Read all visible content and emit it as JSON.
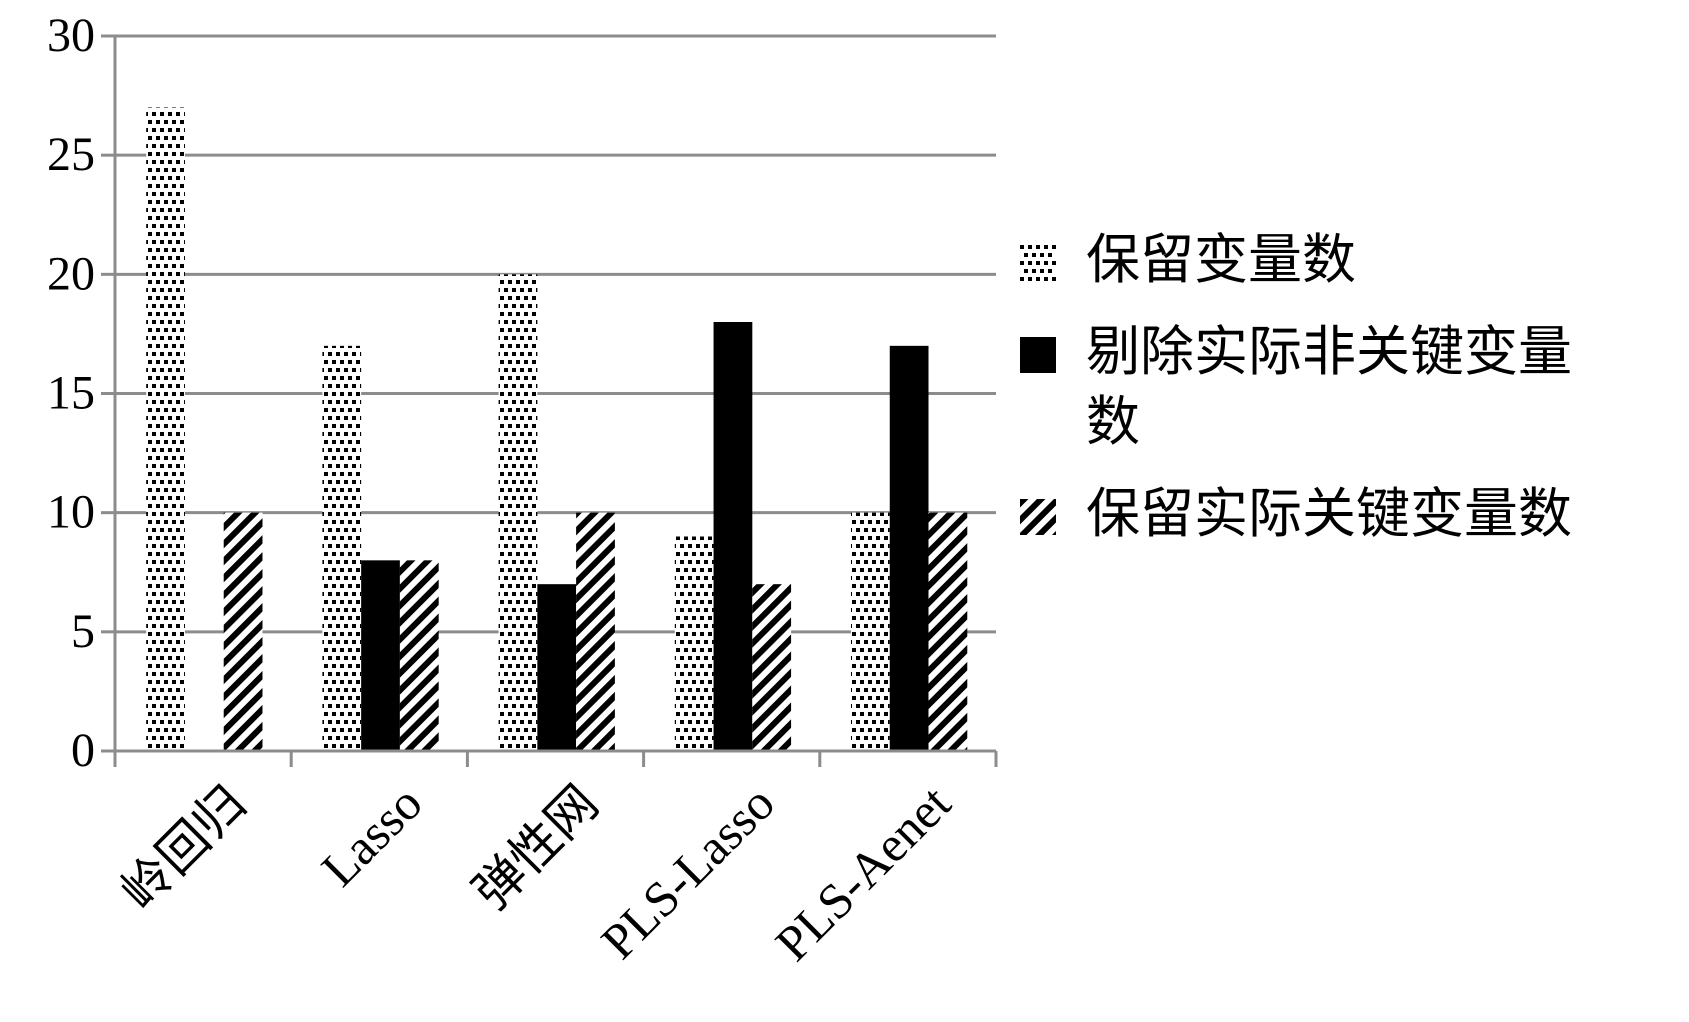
{
  "chart_data": {
    "type": "bar",
    "categories": [
      "岭回归",
      "Lasso",
      "弹性网",
      "PLS-Lasso",
      "PLS-Aenet"
    ],
    "series": [
      {
        "name": "保留变量数",
        "color": "#000000",
        "pattern": "dots",
        "values": [
          27,
          17,
          20,
          9,
          10
        ]
      },
      {
        "name": "剔除实际非关键变量数",
        "color": "#000000",
        "pattern": "solid",
        "values": [
          0,
          8,
          7,
          18,
          17
        ]
      },
      {
        "name": "保留实际关键变量数",
        "color": "#000000",
        "pattern": "hatch",
        "values": [
          10,
          8,
          10,
          7,
          10
        ]
      }
    ],
    "ylim": [
      0,
      30
    ],
    "yticks": [
      0,
      5,
      10,
      15,
      20,
      25,
      30
    ],
    "grid": true,
    "legend": "right"
  }
}
